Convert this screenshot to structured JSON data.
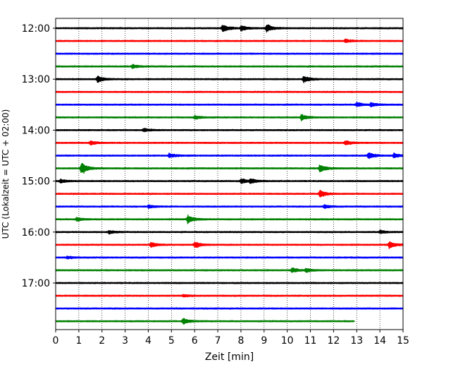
{
  "chart_data": {
    "type": "line",
    "title": "",
    "xlabel": "Zeit  [min]",
    "ylabel": "UTC (Lokalzeit = UTC + 02:00)",
    "xlim": [
      0,
      15
    ],
    "x_ticks": [
      0,
      1,
      2,
      3,
      4,
      5,
      6,
      7,
      8,
      9,
      10,
      11,
      12,
      13,
      14,
      15
    ],
    "y_tick_labels": [
      "12:00",
      "13:00",
      "14:00",
      "15:00",
      "16:00",
      "17:00"
    ],
    "y_tick_rows": [
      0,
      4,
      8,
      12,
      16,
      20
    ],
    "grid": "vertical dotted",
    "trace_colors": [
      "#000000",
      "#ff0000",
      "#0000ff",
      "#008000"
    ],
    "rows": [
      {
        "start": "12:00",
        "color": "#000000",
        "events": [
          {
            "t": 7.2,
            "a": 1.0
          },
          {
            "t": 8.0,
            "a": 0.7
          },
          {
            "t": 9.1,
            "a": 1.0
          }
        ]
      },
      {
        "start": "12:15",
        "color": "#ff0000",
        "events": [
          {
            "t": 12.5,
            "a": 0.4
          }
        ]
      },
      {
        "start": "12:30",
        "color": "#0000ff",
        "events": []
      },
      {
        "start": "12:45",
        "color": "#008000",
        "events": [
          {
            "t": 3.3,
            "a": 0.5
          }
        ]
      },
      {
        "start": "13:00",
        "color": "#000000",
        "events": [
          {
            "t": 1.8,
            "a": 0.9
          },
          {
            "t": 10.7,
            "a": 0.9
          }
        ]
      },
      {
        "start": "13:15",
        "color": "#ff0000",
        "events": []
      },
      {
        "start": "13:30",
        "color": "#0000ff",
        "events": [
          {
            "t": 13.0,
            "a": 0.6
          },
          {
            "t": 13.6,
            "a": 0.5
          }
        ]
      },
      {
        "start": "13:45",
        "color": "#008000",
        "events": [
          {
            "t": 6.0,
            "a": 0.4
          },
          {
            "t": 10.6,
            "a": 0.8
          }
        ]
      },
      {
        "start": "14:00",
        "color": "#000000",
        "events": [
          {
            "t": 3.8,
            "a": 0.4
          }
        ]
      },
      {
        "start": "14:15",
        "color": "#ff0000",
        "events": [
          {
            "t": 1.5,
            "a": 0.5
          },
          {
            "t": 12.5,
            "a": 0.6
          }
        ]
      },
      {
        "start": "14:30",
        "color": "#0000ff",
        "events": [
          {
            "t": 4.9,
            "a": 0.6
          },
          {
            "t": 13.5,
            "a": 0.9
          },
          {
            "t": 14.6,
            "a": 0.6
          }
        ]
      },
      {
        "start": "14:45",
        "color": "#008000",
        "events": [
          {
            "t": 1.1,
            "a": 1.6
          },
          {
            "t": 11.4,
            "a": 1.0
          }
        ]
      },
      {
        "start": "15:00",
        "color": "#000000",
        "events": [
          {
            "t": 0.2,
            "a": 0.5
          },
          {
            "t": 8.0,
            "a": 0.7
          },
          {
            "t": 8.4,
            "a": 0.6
          }
        ]
      },
      {
        "start": "15:15",
        "color": "#ff0000",
        "events": [
          {
            "t": 11.4,
            "a": 1.0
          }
        ]
      },
      {
        "start": "15:30",
        "color": "#0000ff",
        "events": [
          {
            "t": 4.0,
            "a": 0.4
          },
          {
            "t": 11.6,
            "a": 0.5
          }
        ]
      },
      {
        "start": "15:45",
        "color": "#008000",
        "events": [
          {
            "t": 0.9,
            "a": 0.5
          },
          {
            "t": 5.7,
            "a": 1.0
          }
        ]
      },
      {
        "start": "16:00",
        "color": "#000000",
        "events": [
          {
            "t": 2.3,
            "a": 0.4
          },
          {
            "t": 14.0,
            "a": 0.4
          }
        ]
      },
      {
        "start": "16:15",
        "color": "#ff0000",
        "events": [
          {
            "t": 4.1,
            "a": 0.7
          },
          {
            "t": 6.0,
            "a": 0.8
          },
          {
            "t": 14.4,
            "a": 0.9
          }
        ]
      },
      {
        "start": "16:30",
        "color": "#0000ff",
        "events": [
          {
            "t": 0.5,
            "a": 0.3
          }
        ]
      },
      {
        "start": "16:45",
        "color": "#008000",
        "events": [
          {
            "t": 10.2,
            "a": 0.6
          },
          {
            "t": 10.8,
            "a": 0.5
          }
        ]
      },
      {
        "start": "17:00",
        "color": "#000000",
        "events": []
      },
      {
        "start": "17:15",
        "color": "#ff0000",
        "events": [
          {
            "t": 5.5,
            "a": 0.3
          }
        ]
      },
      {
        "start": "17:30",
        "color": "#0000ff",
        "events": []
      },
      {
        "start": "17:45",
        "color": "#008000",
        "events": [
          {
            "t": 5.5,
            "a": 0.8
          }
        ],
        "end": 12.9
      }
    ]
  }
}
